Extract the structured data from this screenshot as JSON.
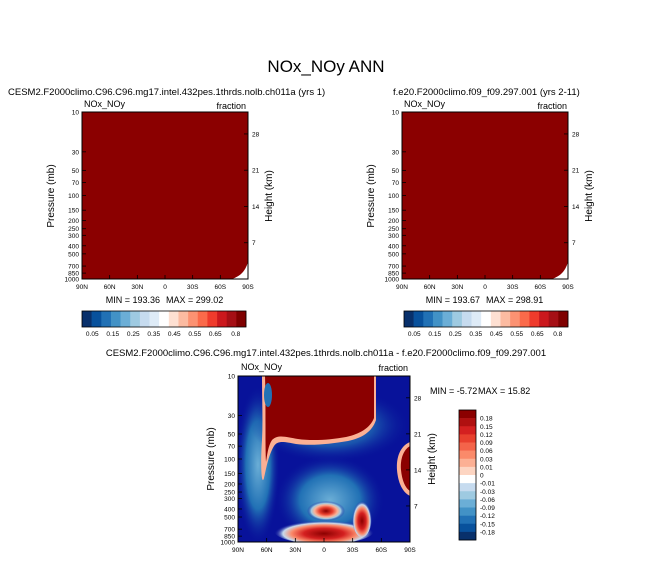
{
  "page": {
    "title": "NOx_NOy ANN"
  },
  "chart_data": [
    {
      "type": "heatmap",
      "title": "CESM2.F2000climo.C96.C96.mg17.intel.432pes.1thrds.nolb.ch011a (yrs 1)",
      "variable_label": "NOx_NOy",
      "units_label": "fraction",
      "xlabel": "",
      "ylabel": "Pressure (mb)",
      "y2label": "Height (km)",
      "x_ticks": [
        "90N",
        "60N",
        "30N",
        "0",
        "30S",
        "60S",
        "90S"
      ],
      "y_ticks": [
        10,
        30,
        50,
        70,
        100,
        150,
        200,
        250,
        300,
        400,
        500,
        700,
        850,
        1000
      ],
      "y_log": true,
      "ylim": [
        10,
        1000
      ],
      "y2_ticks": [
        28,
        21,
        14,
        7
      ],
      "stats": {
        "min_label": "MIN = 193.36",
        "max_label": "MAX = 299.02"
      },
      "colorbar": {
        "labels": [
          "0.05",
          "0.15",
          "0.25",
          "0.35",
          "0.45",
          "0.55",
          "0.65",
          "0.8"
        ],
        "colors": [
          "#08306b",
          "#08519c",
          "#2171b5",
          "#4292c6",
          "#6baed6",
          "#9ecae1",
          "#c6dbef",
          "#deebf7",
          "#ffffff",
          "#fee0d2",
          "#fcbba1",
          "#fc9272",
          "#fb6a4a",
          "#ef3b2c",
          "#cb181d",
          "#a50f15",
          "#7f0000"
        ]
      },
      "fill_color": "#8b0000"
    },
    {
      "type": "heatmap",
      "title": "f.e20.F2000climo.f09_f09.297.001 (yrs 2-11)",
      "variable_label": "NOx_NOy",
      "units_label": "fraction",
      "xlabel": "",
      "ylabel": "Pressure (mb)",
      "y2label": "Height (km)",
      "x_ticks": [
        "90N",
        "60N",
        "30N",
        "0",
        "30S",
        "60S",
        "90S"
      ],
      "y_ticks": [
        10,
        30,
        50,
        70,
        100,
        150,
        200,
        250,
        300,
        400,
        500,
        700,
        850,
        1000
      ],
      "y_log": true,
      "ylim": [
        10,
        1000
      ],
      "y2_ticks": [
        28,
        21,
        14,
        7
      ],
      "stats": {
        "min_label": "MIN = 193.67",
        "max_label": "MAX = 298.91"
      },
      "colorbar": {
        "labels": [
          "0.05",
          "0.15",
          "0.25",
          "0.35",
          "0.45",
          "0.55",
          "0.65",
          "0.8"
        ],
        "colors": [
          "#08306b",
          "#08519c",
          "#2171b5",
          "#4292c6",
          "#6baed6",
          "#9ecae1",
          "#c6dbef",
          "#deebf7",
          "#ffffff",
          "#fee0d2",
          "#fcbba1",
          "#fc9272",
          "#fb6a4a",
          "#ef3b2c",
          "#cb181d",
          "#a50f15",
          "#7f0000"
        ]
      },
      "fill_color": "#8b0000"
    },
    {
      "type": "heatmap",
      "title": "CESM2.F2000climo.C96.C96.mg17.intel.432pes.1thrds.nolb.ch011a - f.e20.F2000climo.f09_f09.297.001",
      "variable_label": "NOx_NOy",
      "units_label": "fraction",
      "xlabel": "",
      "ylabel": "Pressure (mb)",
      "y2label": "Height (km)",
      "x_ticks": [
        "90N",
        "60N",
        "30N",
        "0",
        "30S",
        "60S",
        "90S"
      ],
      "y_ticks": [
        10,
        30,
        50,
        70,
        100,
        150,
        200,
        250,
        300,
        400,
        500,
        700,
        850,
        1000
      ],
      "y_log": true,
      "ylim": [
        10,
        1000
      ],
      "y2_ticks": [
        28,
        21,
        14,
        7
      ],
      "stats": {
        "min_label": "MIN = -5.72",
        "max_label": "MAX = 15.82"
      },
      "colorbar": {
        "labels": [
          "0.18",
          "0.15",
          "0.12",
          "0.09",
          "0.06",
          "0.03",
          "0.01",
          "0",
          "-0.01",
          "-0.03",
          "-0.06",
          "-0.09",
          "-0.12",
          "-0.15",
          "-0.18"
        ],
        "colors": [
          "#8b0000",
          "#b01010",
          "#d42020",
          "#e8402e",
          "#f4644a",
          "#fa8a6a",
          "#fcb094",
          "#fdd5c2",
          "#ffffff",
          "#c6dbef",
          "#9ecae1",
          "#6baed6",
          "#4292c6",
          "#2171b5",
          "#08519c",
          "#08306b"
        ]
      },
      "background_color": "#08129a",
      "regions": [
        {
          "name": "positive-cap-north",
          "lat": [
            90,
            15
          ],
          "p": [
            10,
            70
          ],
          "level": 0.18
        },
        {
          "name": "positive-tropics",
          "lat": [
            15,
            -45
          ],
          "p": [
            10,
            60
          ],
          "level": 0.18
        },
        {
          "name": "positive-south-edge",
          "lat": [
            -80,
            -90
          ],
          "p": [
            80,
            250
          ],
          "level": 0.18
        },
        {
          "name": "positive-midlat-lobe",
          "lat": [
            10,
            -15
          ],
          "p": [
            380,
            500
          ],
          "level": 0.18
        },
        {
          "name": "positive-surface-band",
          "lat": [
            45,
            -40
          ],
          "p": [
            650,
            1000
          ],
          "level": 0.18
        },
        {
          "name": "positive-sh-plume",
          "lat": [
            -30,
            -40
          ],
          "p": [
            400,
            900
          ],
          "level": 0.18
        }
      ]
    }
  ]
}
